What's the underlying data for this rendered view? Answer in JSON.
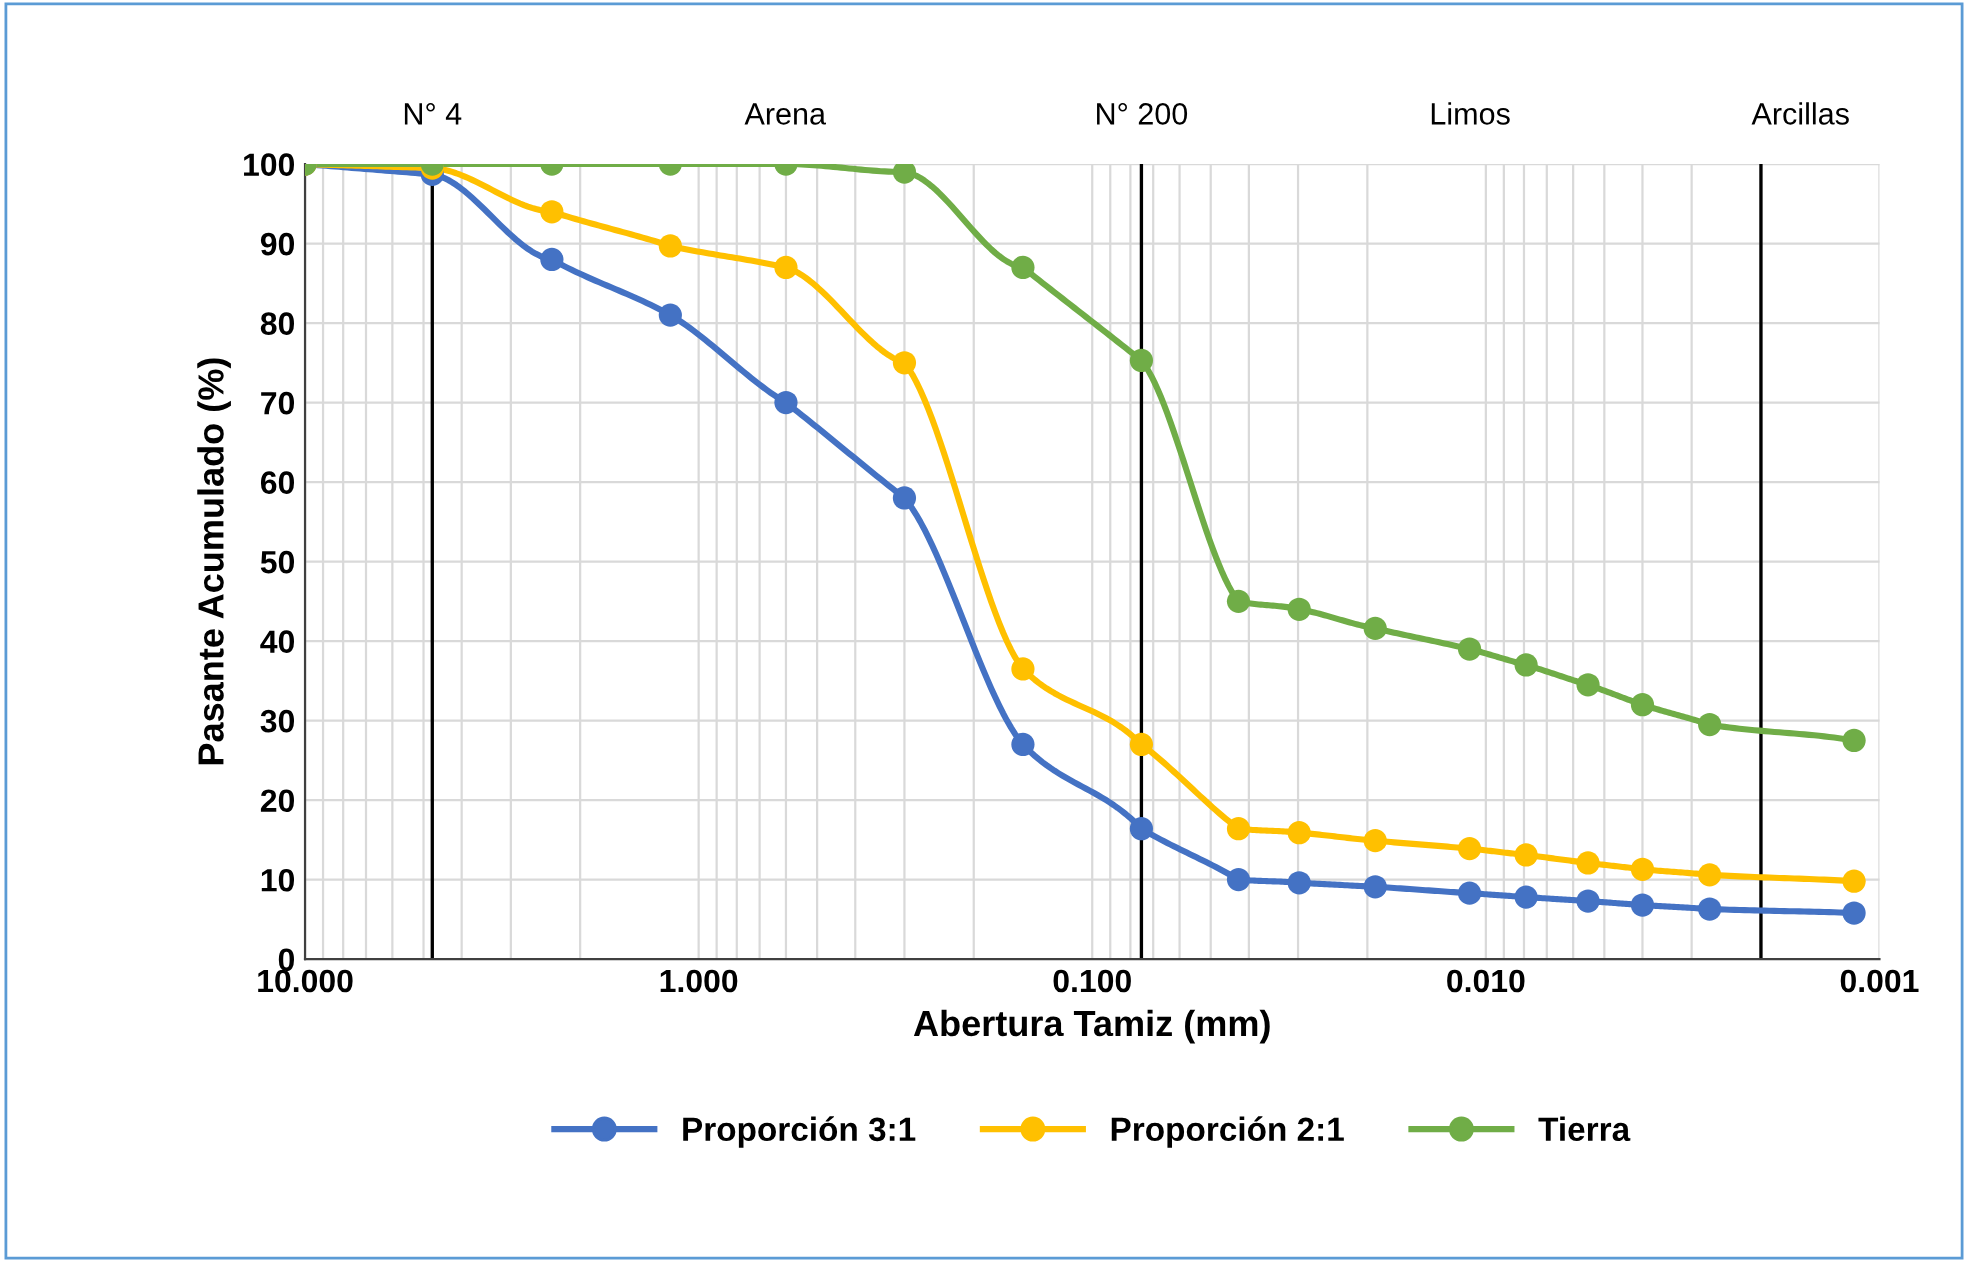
{
  "chart_data": {
    "type": "line",
    "xlabel": "Abertura Tamiz (mm)",
    "ylabel": "Pasante Acumulado (%)",
    "x": [
      10,
      4.75,
      2.36,
      1.18,
      0.6,
      0.3,
      0.15,
      0.075,
      0.0425,
      0.0298,
      0.0191,
      0.011,
      0.0079,
      0.0055,
      0.004,
      0.0027,
      0.00116
    ],
    "series": [
      {
        "name": "Proporción 3:1",
        "color": "#4472c4",
        "values": [
          100,
          98.7,
          88,
          81,
          70,
          58,
          27,
          16.4,
          10,
          9.6,
          9.1,
          8.3,
          7.8,
          7.3,
          6.8,
          6.3,
          5.8
        ]
      },
      {
        "name": "Proporción 2:1",
        "color": "#ffc000",
        "values": [
          100,
          99.5,
          94,
          89.7,
          87,
          75,
          36.5,
          27,
          16.4,
          15.9,
          14.9,
          13.9,
          13.1,
          12.1,
          11.3,
          10.6,
          9.8
        ]
      },
      {
        "name": "Tierra",
        "color": "#70ad47",
        "values": [
          100,
          100,
          100,
          100,
          100,
          99,
          87,
          75.3,
          45,
          44,
          41.6,
          39,
          37,
          34.5,
          32,
          29.5,
          27.5
        ]
      }
    ],
    "log": "x",
    "xlim": [
      10,
      0.001
    ],
    "xticks": [
      {
        "value": 10,
        "label": "10.000"
      },
      {
        "value": 1,
        "label": "1.000"
      },
      {
        "value": 0.1,
        "label": "0.100"
      },
      {
        "value": 0.01,
        "label": "0.010"
      },
      {
        "value": 0.001,
        "label": "0.001"
      }
    ],
    "ylim": [
      0,
      100
    ],
    "yticks": [
      0,
      10,
      20,
      30,
      40,
      50,
      60,
      70,
      80,
      90,
      100
    ],
    "grid": true,
    "legend": "bottom",
    "marker": "circle",
    "line_style": "solid",
    "ref_lines": [
      {
        "axis": "x",
        "value": 4.75,
        "label": "N° 4",
        "color": "#000000"
      },
      {
        "axis": "x",
        "value": 0.075,
        "label": "N° 200",
        "color": "#000000"
      },
      {
        "axis": "x",
        "value": 0.002,
        "label": null,
        "color": "#000000"
      }
    ],
    "annotations": [
      "Arena",
      "Limos",
      "Arcillas"
    ]
  }
}
